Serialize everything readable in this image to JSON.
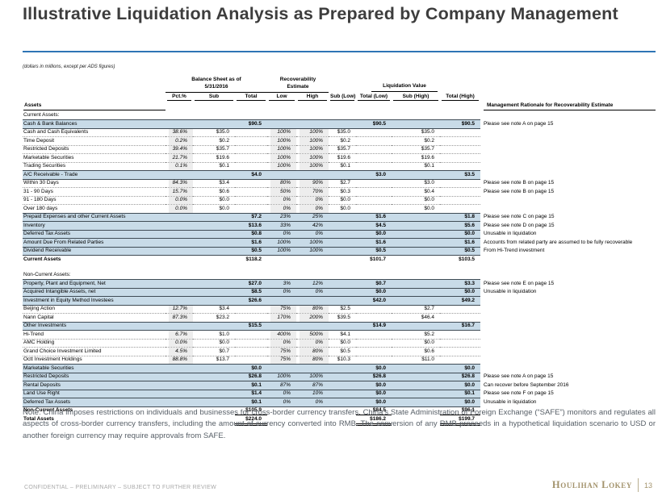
{
  "slide": {
    "title": "Illustrative Liquidation Analysis as Prepared by Company Management",
    "subtitle": "(dollars in millions, except per ADS figures)",
    "accent_color": "#2e74b5",
    "band_color": "#c8dbe8",
    "brand_color": "#a3936c"
  },
  "table": {
    "group_headers": {
      "balance_sheet_line1": "Balance Sheet as of",
      "balance_sheet_line2": "5/31/2016",
      "recoverability_line1": "Recoverability",
      "recoverability_line2": "Estimate",
      "liquidation": "Liquidation Value"
    },
    "columns": [
      "Pct.%",
      "Sub",
      "Total",
      "Low",
      "High",
      "Sub (Low)",
      "Total (Low)",
      "Sub (High)",
      "Total (High)"
    ],
    "assets_label": "Assets",
    "rationale_label": "Management Rationale for Recoverability Estimate",
    "rows": [
      {
        "style": "section",
        "name": "Current Assets:"
      },
      {
        "style": "band",
        "name": "Cash & Bank Balances",
        "total": "$90.5",
        "total_low": "$90.5",
        "total_high": "$90.5",
        "note": "Please see note A on page 15"
      },
      {
        "style": "detail",
        "name": "Cash and Cash Equivalents",
        "pct": "38.6%",
        "sub": "$35.0",
        "low": "100%",
        "high": "100%",
        "sub_low": "$35.0",
        "sub_high": "$35.0"
      },
      {
        "style": "detail",
        "name": "Time Deposit",
        "pct": "0.2%",
        "sub": "$0.2",
        "low": "100%",
        "high": "100%",
        "sub_low": "$0.2",
        "sub_high": "$0.2"
      },
      {
        "style": "detail",
        "name": "Restricted Deposits",
        "pct": "39.4%",
        "sub": "$35.7",
        "low": "100%",
        "high": "100%",
        "sub_low": "$35.7",
        "sub_high": "$35.7"
      },
      {
        "style": "detail",
        "name": "Marketable Securities",
        "pct": "21.7%",
        "sub": "$19.6",
        "low": "100%",
        "high": "100%",
        "sub_low": "$19.6",
        "sub_high": "$19.6"
      },
      {
        "style": "detail",
        "name": "Trading Securities",
        "pct": "0.1%",
        "sub": "$0.1",
        "low": "100%",
        "high": "100%",
        "sub_low": "$0.1",
        "sub_high": "$0.1"
      },
      {
        "style": "band",
        "name": "A/C Receivable - Trade",
        "total": "$4.0",
        "total_low": "$3.0",
        "total_high": "$3.5"
      },
      {
        "style": "detail",
        "name": "Within 30 Days",
        "pct": "84.3%",
        "sub": "$3.4",
        "low": "80%",
        "high": "90%",
        "sub_low": "$2.7",
        "sub_high": "$3.0",
        "note": "Please see note B on page 15"
      },
      {
        "style": "detail",
        "name": "31 - 90 Days",
        "pct": "15.7%",
        "sub": "$0.6",
        "low": "50%",
        "high": "70%",
        "sub_low": "$0.3",
        "sub_high": "$0.4",
        "note": "Please see note B on page 15"
      },
      {
        "style": "detail",
        "name": "91 - 180 Days",
        "pct": "0.0%",
        "sub": "$0.0",
        "low": "0%",
        "high": "0%",
        "sub_low": "$0.0",
        "sub_high": "$0.0"
      },
      {
        "style": "detail",
        "name": "Over 180 days",
        "pct": "0.0%",
        "sub": "$0.0",
        "low": "0%",
        "high": "0%",
        "sub_low": "$0.0",
        "sub_high": "$0.0"
      },
      {
        "style": "band",
        "name": "Prepaid Expenses and other Current Assets",
        "total": "$7.2",
        "low": "23%",
        "high": "25%",
        "total_low": "$1.6",
        "total_high": "$1.8",
        "note": "Please see note C on page 15"
      },
      {
        "style": "band",
        "name": "Inventory",
        "total": "$13.6",
        "low": "33%",
        "high": "42%",
        "total_low": "$4.5",
        "total_high": "$5.6",
        "note": "Please see note D on page 15"
      },
      {
        "style": "band",
        "name": "Deferred Tax Assets",
        "total": "$0.8",
        "low": "0%",
        "high": "0%",
        "total_low": "$0.0",
        "total_high": "$0.0",
        "note": "Unusable in liquidation"
      },
      {
        "style": "band",
        "name": "Amount Due From Related Parties",
        "total": "$1.6",
        "low": "100%",
        "high": "100%",
        "total_low": "$1.6",
        "total_high": "$1.6",
        "note": "Accounts from related party are assumed to be fully recoverable"
      },
      {
        "style": "band",
        "name": "Dividend Receivable",
        "total": "$0.5",
        "low": "100%",
        "high": "100%",
        "total_low": "$0.5",
        "total_high": "$0.5",
        "note": "From Hi-Trend investment"
      },
      {
        "style": "bold",
        "rule": "none",
        "name": "Current Assets",
        "total": "$118.2",
        "total_low": "$101.7",
        "total_high": "$103.5"
      },
      {
        "style": "blank"
      },
      {
        "style": "section",
        "name": "Non-Current Assets:"
      },
      {
        "style": "band",
        "name": "Property, Plant and Equipment, Net",
        "total": "$27.0",
        "low": "3%",
        "high": "12%",
        "total_low": "$0.7",
        "total_high": "$3.3",
        "note": "Please see note E on page 15"
      },
      {
        "style": "band",
        "name": "Acquired Intangible Assets, net",
        "total": "$8.5",
        "low": "0%",
        "high": "0%",
        "total_low": "$0.0",
        "total_high": "$0.0",
        "note": "Unusable in liquidation"
      },
      {
        "style": "band",
        "name": "Investment in Equity Method Investees",
        "total": "$26.6",
        "total_low": "$42.0",
        "total_high": "$49.2"
      },
      {
        "style": "detail",
        "name": "Beijing Action",
        "pct": "12.7%",
        "sub": "$3.4",
        "low": "75%",
        "high": "80%",
        "sub_low": "$2.5",
        "sub_high": "$2.7"
      },
      {
        "style": "detail",
        "name": "Nann Capital",
        "pct": "87.3%",
        "sub": "$23.2",
        "low": "170%",
        "high": "200%",
        "sub_low": "$39.5",
        "sub_high": "$46.4"
      },
      {
        "style": "band",
        "name": "Other Investments",
        "total": "$15.5",
        "total_low": "$14.9",
        "total_high": "$16.7"
      },
      {
        "style": "detail",
        "name": "Hi-Trend",
        "pct": "6.7%",
        "sub": "$1.0",
        "low": "400%",
        "high": "500%",
        "sub_low": "$4.1",
        "sub_high": "$5.2"
      },
      {
        "style": "detail",
        "name": "AMC Holding",
        "pct": "0.0%",
        "sub": "$0.0",
        "low": "0%",
        "high": "0%",
        "sub_low": "$0.0",
        "sub_high": "$0.0"
      },
      {
        "style": "detail",
        "name": "Grand Choice Investment Limited",
        "pct": "4.5%",
        "sub": "$0.7",
        "low": "75%",
        "high": "80%",
        "sub_low": "$0.5",
        "sub_high": "$0.6"
      },
      {
        "style": "detail",
        "name": "Octt Investment Holdings",
        "pct": "88.8%",
        "sub": "$13.7",
        "low": "75%",
        "high": "80%",
        "sub_low": "$10.3",
        "sub_high": "$11.0"
      },
      {
        "style": "band",
        "name": "Marketable Securities",
        "total": "$0.0",
        "total_low": "$0.0",
        "total_high": "$0.0"
      },
      {
        "style": "band",
        "name": "Restricted Deposits",
        "total": "$26.8",
        "low": "100%",
        "high": "100%",
        "total_low": "$26.8",
        "total_high": "$26.8",
        "note": "Please see note A on page 15"
      },
      {
        "style": "band",
        "name": "Rental Deposits",
        "total": "$0.1",
        "low": "87%",
        "high": "87%",
        "total_low": "$0.0",
        "total_high": "$0.0",
        "note": "Can recover before September 2016"
      },
      {
        "style": "band",
        "name": "Land Use Right",
        "total": "$1.4",
        "low": "0%",
        "high": "10%",
        "total_low": "$0.0",
        "total_high": "$0.1",
        "note": "Please see note F on page 15"
      },
      {
        "style": "band",
        "name": "Deferred Tax Assets",
        "total": "$0.1",
        "low": "0%",
        "high": "0%",
        "total_low": "$0.0",
        "total_high": "$0.0",
        "note": "Unusable in liquidation"
      },
      {
        "style": "bold",
        "rule": "single",
        "name": "Non-Current Assets",
        "total": "$105.9",
        "total_low": "$84.5",
        "total_high": "$96.1"
      },
      {
        "style": "bold",
        "rule": "double",
        "name": "Total Assets",
        "total": "$224.0",
        "total_low": "$186.2",
        "total_high": "$199.7"
      }
    ]
  },
  "note": "Note: China imposes restrictions on individuals and businesses for cross-border currency transfers. China’s State Administration of Foreign Exchange (“SAFE”) monitors and regulates all aspects of cross-border currency transfers, including the amount of currency converted into RMB. The conversion of any RMB proceeds in a hypothetical liquidation scenario to USD or another foreign currency may require approvals from SAFE.",
  "footer": {
    "left": "CONFIDENTIAL – PRELIMINARY – SUBJECT TO FURTHER REVIEW",
    "brand": "Houlihan Lokey",
    "page": "13"
  }
}
